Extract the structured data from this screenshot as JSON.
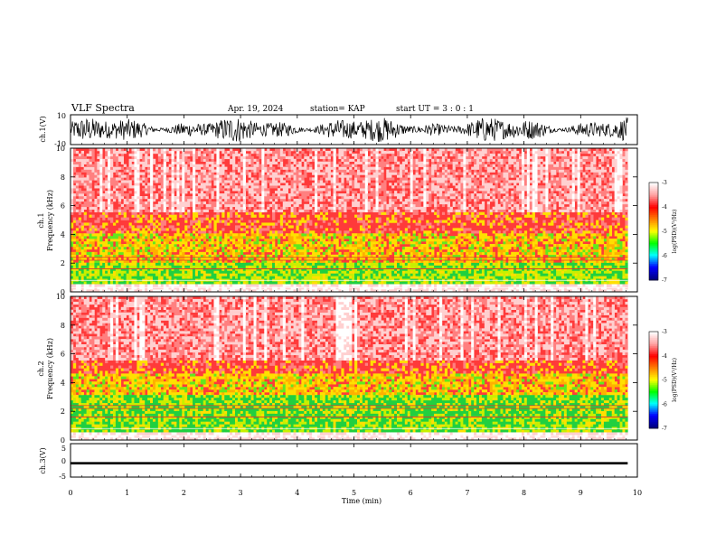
{
  "header": {
    "title": "VLF Spectra",
    "date": "Apr. 19, 2024",
    "station": "station= KAP",
    "start_ut": "start UT =  3 : 0 : 1"
  },
  "chart_data": [
    {
      "type": "line",
      "name": "ch1-waveform",
      "ylabel": "ch.1(V)",
      "ylim": [
        -10,
        10
      ],
      "y_ticks": [
        "10",
        "-10"
      ],
      "xlim": [
        0,
        10
      ],
      "description_of_data": "noisy voltage trace"
    },
    {
      "type": "heatmap",
      "name": "ch1-spectrogram",
      "ylabel": "ch.1",
      "ylabel2": "Frequency (kHz)",
      "ylim": [
        0,
        10
      ],
      "y_ticks": [
        "0",
        "2",
        "4",
        "6",
        "8",
        "10"
      ],
      "xlim": [
        0,
        9.83
      ],
      "colorbar": {
        "label": "log(PSD)(V²/Hz)",
        "range": [
          -7,
          -3
        ],
        "ticks": [
          "-3",
          "-4",
          "-5",
          "-6",
          "-7"
        ]
      },
      "bands": [
        {
          "from_khz": 0,
          "to_khz": 2,
          "level": "green-yellow"
        },
        {
          "from_khz": 2,
          "to_khz": 4,
          "level": "yellow-red"
        },
        {
          "from_khz": 4,
          "to_khz": 10,
          "level": "red-white"
        }
      ]
    },
    {
      "type": "heatmap",
      "name": "ch2-spectrogram",
      "ylabel": "ch.2",
      "ylabel2": "Frequency (kHz)",
      "ylim": [
        0,
        10
      ],
      "y_ticks": [
        "0",
        "2",
        "4",
        "6",
        "8",
        "10"
      ],
      "xlim": [
        0,
        9.83
      ],
      "colorbar": {
        "label": "log(PSD)(V²/Hz)",
        "range": [
          -7,
          -3
        ],
        "ticks": [
          "-3",
          "-4",
          "-5",
          "-6",
          "-7"
        ]
      },
      "bands": [
        {
          "from_khz": 0,
          "to_khz": 3,
          "level": "green"
        },
        {
          "from_khz": 3,
          "to_khz": 4.5,
          "level": "yellow-red"
        },
        {
          "from_khz": 4.5,
          "to_khz": 10,
          "level": "red-white"
        }
      ]
    },
    {
      "type": "line",
      "name": "ch3-trace",
      "ylabel": "ch.3(V)",
      "ylim": [
        -5,
        5
      ],
      "y_ticks": [
        "5",
        "0",
        "-5"
      ],
      "xlim": [
        0,
        10
      ],
      "level_band": [
        -1.2,
        -0.5
      ]
    }
  ],
  "x_axis": {
    "label": "Time (min)",
    "ticks": [
      "0",
      "1",
      "2",
      "3",
      "4",
      "5",
      "6",
      "7",
      "8",
      "9",
      "10"
    ]
  },
  "colors": {
    "trace": "#000000",
    "band_red": "#ff2020",
    "band_yellow": "#ffe000",
    "band_green": "#20e020",
    "background": "#ffffff"
  }
}
